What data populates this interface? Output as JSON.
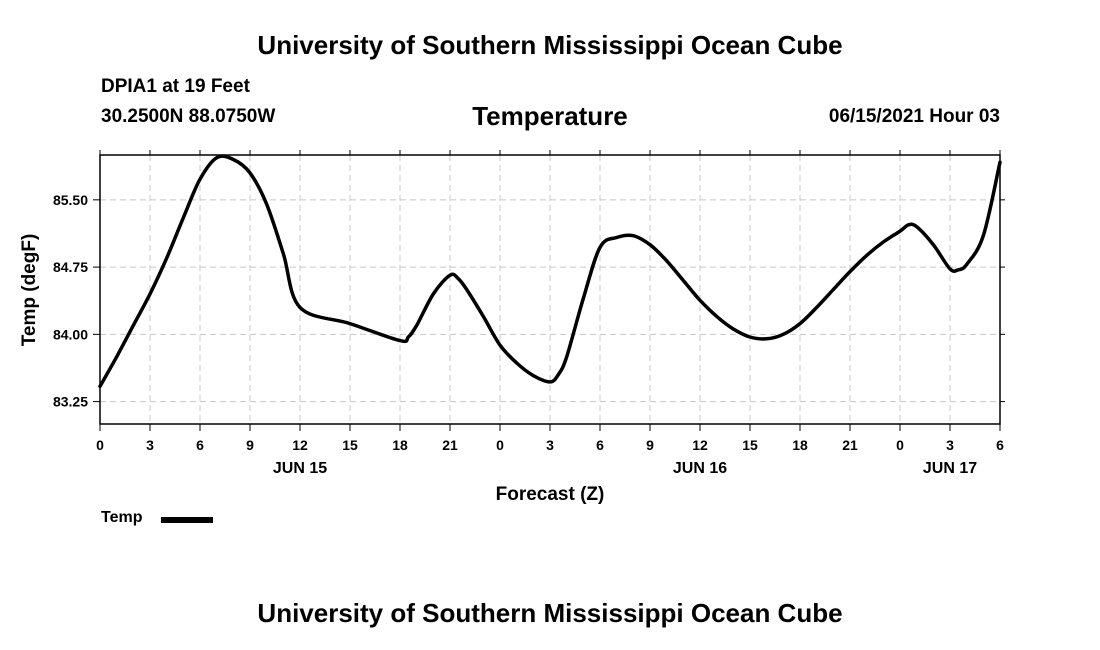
{
  "header": {
    "title": "University of Southern Mississippi Ocean Cube",
    "station": "DPIA1 at 19 Feet",
    "coords": "30.2500N  88.0750W",
    "variable": "Temperature",
    "datetime": "06/15/2021 Hour 03"
  },
  "footer": {
    "title": "University of Southern Mississippi Ocean Cube"
  },
  "legend": {
    "label": "Temp"
  },
  "chart_data": {
    "type": "line",
    "xlabel": "Forecast (Z)",
    "ylabel": "Temp (degF)",
    "x_unit": "hours since 2021-06-15 00Z",
    "xlim": [
      0,
      54
    ],
    "ylim": [
      83.0,
      86.0
    ],
    "grid": true,
    "legend_position": "bottom-left",
    "line_color": "#000000",
    "x_tick_labels": [
      "0",
      "3",
      "6",
      "9",
      "12",
      "15",
      "18",
      "21",
      "0",
      "3",
      "6",
      "9",
      "12",
      "15",
      "18",
      "21",
      "0",
      "3",
      "6"
    ],
    "y_ticks": [
      {
        "value": 83.25,
        "label": "83.25"
      },
      {
        "value": 84.0,
        "label": "84.00"
      },
      {
        "value": 84.75,
        "label": "84.75"
      },
      {
        "value": 85.5,
        "label": "85.50"
      }
    ],
    "day_labels": [
      {
        "hour": 12,
        "label": "JUN 15"
      },
      {
        "hour": 36,
        "label": "JUN 16"
      },
      {
        "hour": 51,
        "label": "JUN 17"
      }
    ],
    "series": [
      {
        "name": "Temp",
        "x": [
          0,
          1,
          2,
          3,
          4,
          5,
          6,
          7,
          8,
          9,
          10,
          11,
          12,
          15,
          18,
          18.5,
          19,
          20,
          21,
          21.5,
          22,
          23,
          24,
          25,
          26,
          27,
          27.5,
          28,
          29,
          30,
          31,
          32,
          33,
          34,
          35,
          36,
          37,
          38,
          39,
          40,
          41,
          42,
          43,
          44,
          45,
          46,
          47,
          48,
          48.5,
          49,
          50,
          51,
          51.5,
          52,
          53,
          54
        ],
        "y": [
          83.42,
          83.75,
          84.1,
          84.45,
          84.85,
          85.3,
          85.73,
          85.97,
          85.95,
          85.8,
          85.45,
          84.9,
          84.3,
          84.12,
          83.93,
          83.97,
          84.1,
          84.45,
          84.66,
          84.62,
          84.5,
          84.2,
          83.88,
          83.68,
          83.54,
          83.47,
          83.55,
          83.75,
          84.4,
          84.97,
          85.08,
          85.1,
          85.0,
          84.82,
          84.6,
          84.38,
          84.2,
          84.06,
          83.97,
          83.95,
          84.0,
          84.12,
          84.3,
          84.5,
          84.7,
          84.88,
          85.03,
          85.15,
          85.22,
          85.2,
          85.0,
          84.73,
          84.72,
          84.78,
          85.1,
          85.92
        ]
      }
    ]
  }
}
